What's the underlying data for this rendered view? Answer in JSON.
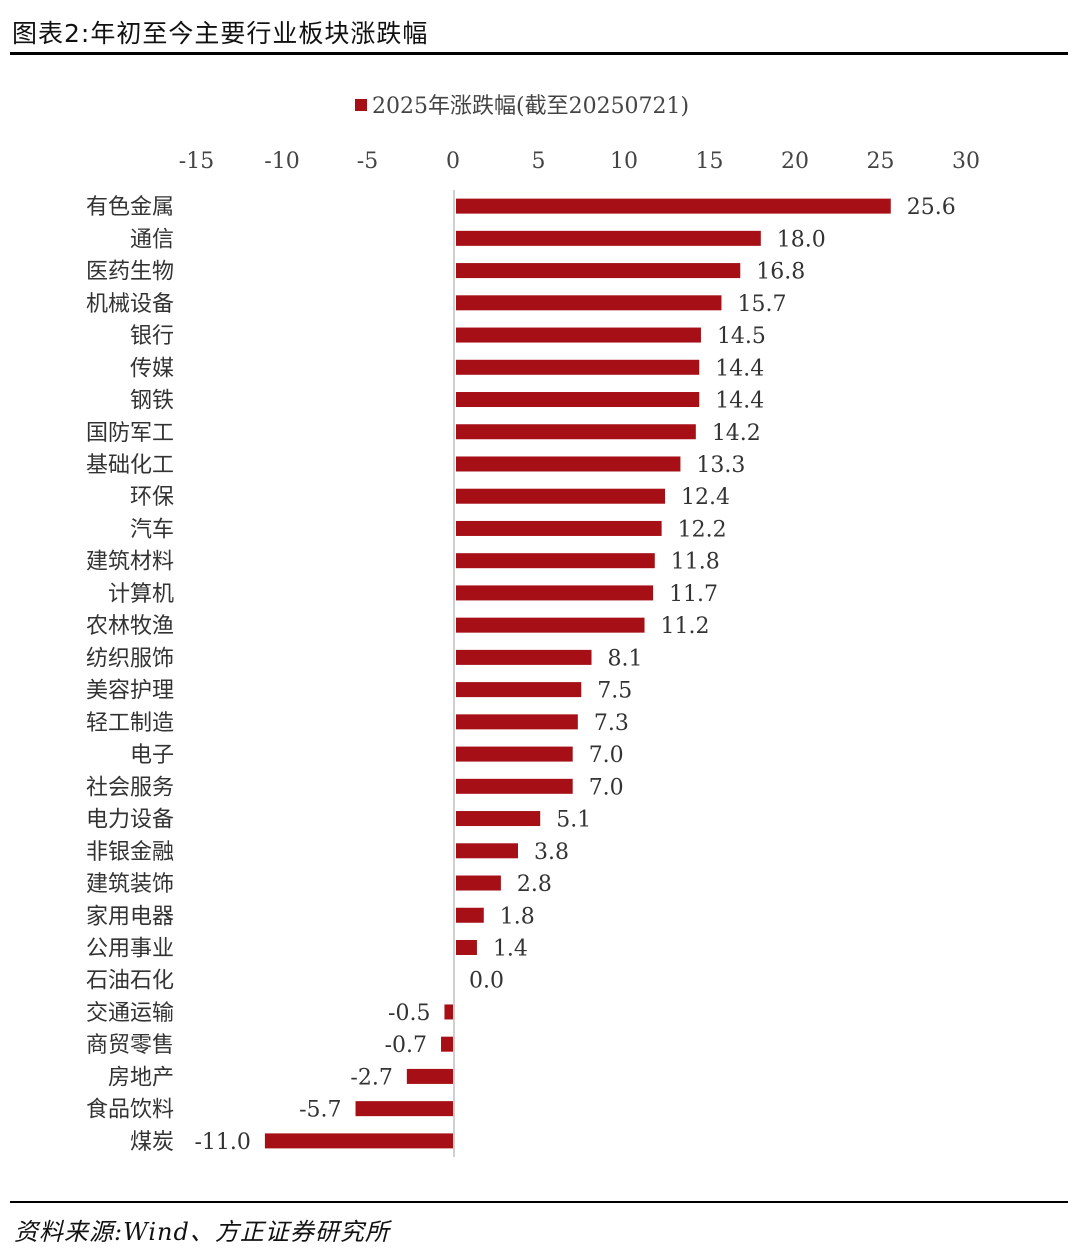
{
  "page": {
    "title": "图表2:年初至今主要行业板块涨跌幅",
    "source": "资料来源:Wind、方正证券研究所"
  },
  "chart_data": {
    "type": "bar",
    "orientation": "horizontal",
    "categories": [
      "有色金属",
      "通信",
      "医药生物",
      "机械设备",
      "银行",
      "传媒",
      "钢铁",
      "国防军工",
      "基础化工",
      "环保",
      "汽车",
      "建筑材料",
      "计算机",
      "农林牧渔",
      "纺织服饰",
      "美容护理",
      "轻工制造",
      "电子",
      "社会服务",
      "电力设备",
      "非银金融",
      "建筑装饰",
      "家用电器",
      "公用事业",
      "石油石化",
      "交通运输",
      "商贸零售",
      "房地产",
      "食品饮料",
      "煤炭"
    ],
    "series": [
      {
        "name": "2025年涨跌幅(截至20250721)",
        "values": [
          25.6,
          18.0,
          16.8,
          15.7,
          14.5,
          14.4,
          14.4,
          14.2,
          13.3,
          12.4,
          12.2,
          11.8,
          11.7,
          11.2,
          8.1,
          7.5,
          7.3,
          7.0,
          7.0,
          5.1,
          3.8,
          2.8,
          1.8,
          1.4,
          0.0,
          -0.5,
          -0.7,
          -2.7,
          -5.7,
          -11.0
        ],
        "labels": [
          "25.6",
          "18.0",
          "16.8",
          "15.7",
          "14.5",
          "14.4",
          "14.4",
          "14.2",
          "13.3",
          "12.4",
          "12.2",
          "11.8",
          "11.7",
          "11.2",
          "8.1",
          "7.5",
          "7.3",
          "7.0",
          "7.0",
          "5.1",
          "3.8",
          "2.8",
          "1.8",
          "1.4",
          "0.0",
          "-0.5",
          "-0.7",
          "-2.7",
          "-5.7",
          "-11.0"
        ],
        "color": "#A50F15"
      }
    ],
    "xlim": [
      -15,
      30
    ],
    "xticks": [
      "-15",
      "-10",
      "-5",
      "0",
      "5",
      "10",
      "15",
      "20",
      "25",
      "30"
    ],
    "xtick_values": [
      -15,
      -10,
      -5,
      0,
      5,
      10,
      15,
      20,
      25,
      30
    ],
    "xaxis_position": "top",
    "legend": "top",
    "grid": false,
    "title": "",
    "xlabel": "",
    "ylabel": ""
  }
}
